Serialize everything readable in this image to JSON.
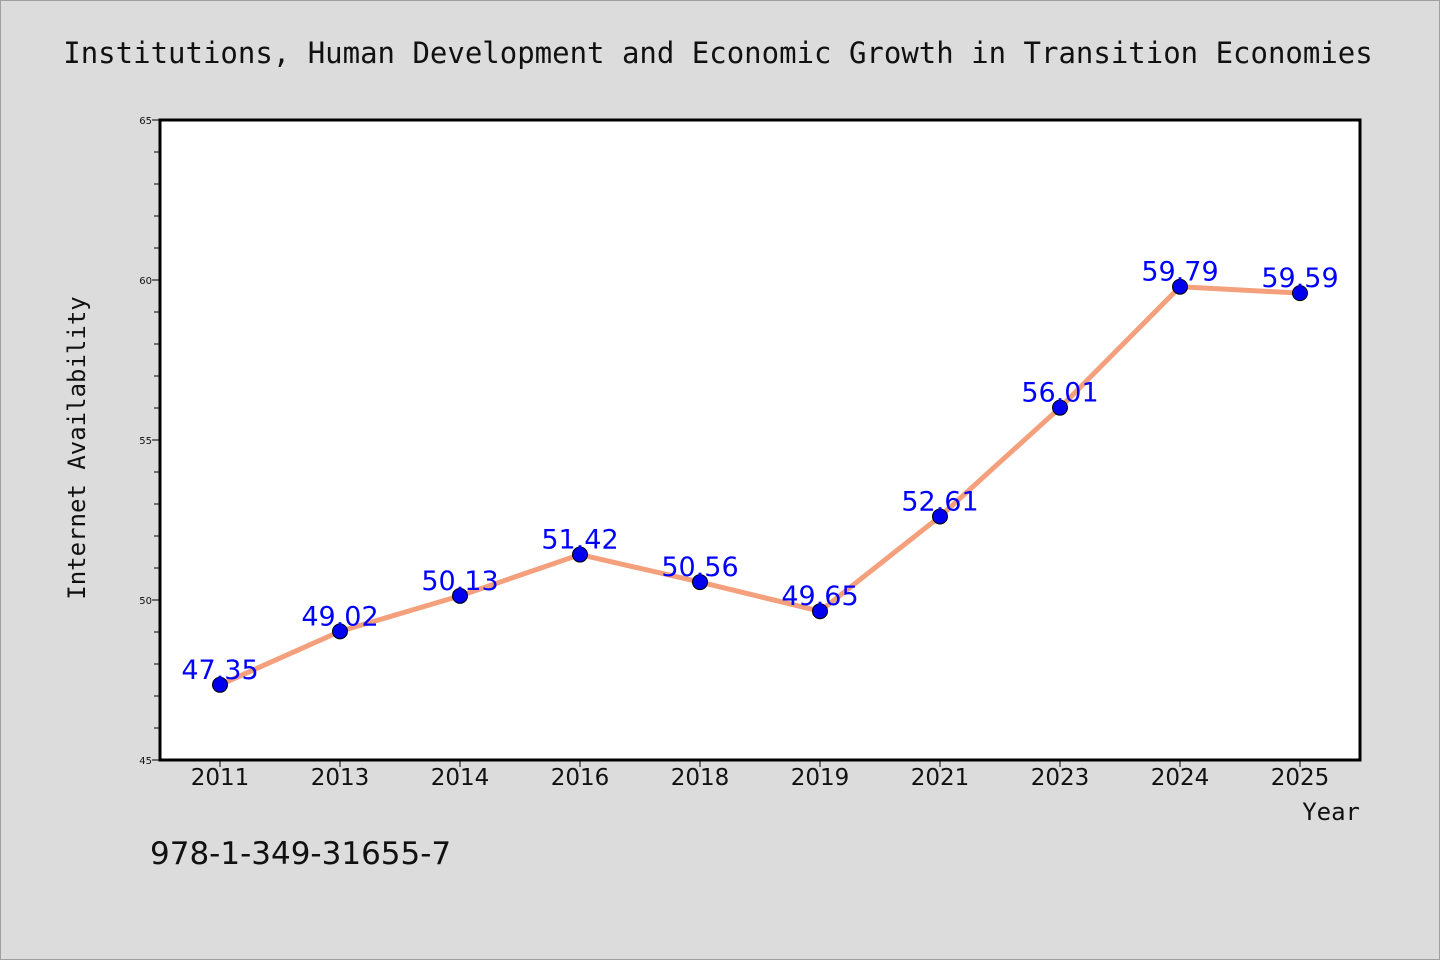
{
  "title": "Institutions, Human Development and Economic Growth in Transition Economies",
  "footer_text": "978-1-349-31655-7",
  "colors": {
    "line": "#f4a07c",
    "marker": "#0000ee",
    "data_label": "#0000ff",
    "background": "#dcdcdc",
    "plot_background": "#ffffff"
  },
  "chart_data": {
    "type": "line",
    "title": "Institutions, Human Development and Economic Growth in Transition Economies",
    "xlabel": "Year",
    "ylabel": "Internet Availability",
    "categories": [
      "2011",
      "2013",
      "2014",
      "2016",
      "2018",
      "2019",
      "2021",
      "2023",
      "2024",
      "2025"
    ],
    "series": [
      {
        "values": [
          47.35,
          49.02,
          50.13,
          51.42,
          50.56,
          49.65,
          52.61,
          56.01,
          59.79,
          59.59
        ],
        "labels": [
          "47.35",
          "49.02",
          "50.13",
          "51.42",
          "50.56",
          "49.65",
          "52.61",
          "56.01",
          "59.79",
          "59.59"
        ]
      }
    ],
    "ylim": [
      45,
      65
    ],
    "yticks": [
      "45",
      "50",
      "55",
      "60",
      "65"
    ],
    "grid": false,
    "legend": "none"
  }
}
